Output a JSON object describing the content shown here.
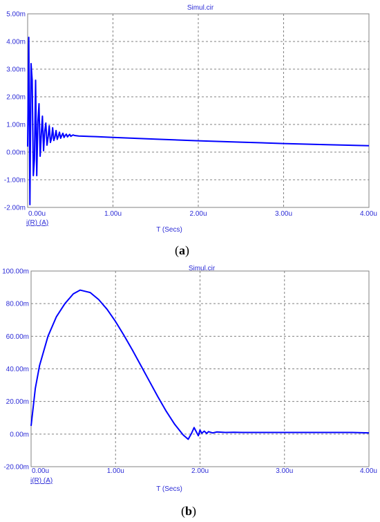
{
  "colors": {
    "trace": "#0000ff",
    "label": "#2b2bd6",
    "grid": "#808080"
  },
  "chart_data": [
    {
      "type": "line",
      "panel_label": "a",
      "title": "Simul.cir",
      "xlabel": "T (Secs)",
      "trace_label": "i(R) (A)",
      "xlim": [
        0,
        4.0
      ],
      "ylim": [
        -2.0,
        5.0
      ],
      "grid": true,
      "x_ticks": [
        "0.00u",
        "1.00u",
        "2.00u",
        "3.00u",
        "4.00u"
      ],
      "y_ticks": [
        "5.00m",
        "4.00m",
        "3.00m",
        "2.00m",
        "1.00m",
        "0.00m",
        "-1.00m",
        "-2.00m"
      ],
      "series": [
        {
          "x": [
            0,
            0.0133,
            0.0267,
            0.04,
            0.0533,
            0.0667,
            0.08,
            0.0933,
            0.1067,
            0.12,
            0.1333,
            0.1467,
            0.16,
            0.1733,
            0.1867,
            0.2,
            0.2133,
            0.2267,
            0.24,
            0.2533,
            0.2667,
            0.28,
            0.2933,
            0.3067,
            0.32,
            0.3333,
            0.3467,
            0.36,
            0.3733,
            0.3867,
            0.4,
            0.4133,
            0.4267,
            0.44,
            0.4533,
            0.4667,
            0.48,
            0.4933,
            0.5067,
            0.52,
            0.5333,
            0.55,
            0.6,
            0.8,
            1.0,
            1.5,
            2.0,
            2.5,
            3.0,
            3.5,
            4.0
          ],
          "y": [
            0.2,
            4.15,
            -1.9,
            3.2,
            2.6,
            -0.85,
            -0.25,
            2.6,
            -0.85,
            1.1,
            1.75,
            -0.15,
            0.65,
            1.3,
            0.05,
            0.75,
            1.05,
            0.25,
            0.55,
            0.95,
            0.35,
            0.5,
            0.88,
            0.42,
            0.55,
            0.78,
            0.46,
            0.58,
            0.72,
            0.5,
            0.6,
            0.68,
            0.53,
            0.6,
            0.65,
            0.55,
            0.6,
            0.64,
            0.57,
            0.6,
            0.62,
            0.6,
            0.58,
            0.56,
            0.53,
            0.47,
            0.41,
            0.36,
            0.31,
            0.27,
            0.23
          ]
        }
      ]
    },
    {
      "type": "line",
      "panel_label": "b",
      "title": "Simul.cir",
      "xlabel": "T (Secs)",
      "trace_label": "i(R) (A)",
      "xlim": [
        0,
        4.0
      ],
      "ylim": [
        -20.0,
        100.0
      ],
      "grid": true,
      "x_ticks": [
        "0.00u",
        "1.00u",
        "2.00u",
        "3.00u",
        "4.00u"
      ],
      "y_ticks": [
        "100.00m",
        "80.00m",
        "60.00m",
        "40.00m",
        "20.00m",
        "0.00m",
        "-20.00m"
      ],
      "series": [
        {
          "x": [
            0,
            0.05,
            0.1,
            0.2,
            0.3,
            0.4,
            0.5,
            0.58,
            0.7,
            0.8,
            0.9,
            1.0,
            1.1,
            1.2,
            1.3,
            1.4,
            1.5,
            1.6,
            1.7,
            1.8,
            1.86,
            1.9,
            1.93,
            1.95,
            1.98,
            2.0,
            2.02,
            2.05,
            2.08,
            2.1,
            2.15,
            2.2,
            2.3,
            2.4,
            2.5,
            2.6,
            3.0,
            3.5,
            3.8,
            4.0
          ],
          "y": [
            5,
            28,
            42,
            60,
            72,
            80,
            86,
            88.3,
            86.8,
            82.5,
            76.5,
            69,
            60.5,
            51.5,
            42,
            32.5,
            23,
            14,
            6,
            -0.5,
            -3.2,
            0.5,
            4.0,
            2.0,
            -1.0,
            2.5,
            0.5,
            1.8,
            0.4,
            1.5,
            0.7,
            1.3,
            1.0,
            1.1,
            1.0,
            1.0,
            1.0,
            1.0,
            1.0,
            0.7
          ]
        }
      ]
    }
  ]
}
